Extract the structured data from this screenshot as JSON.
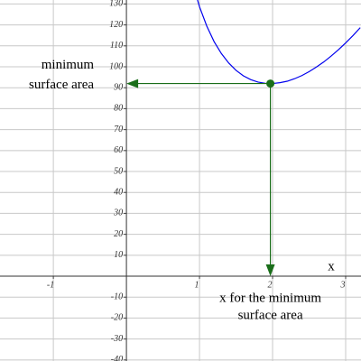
{
  "chart_data": {
    "type": "line",
    "xlabel": "x",
    "annotations": [
      {
        "lines": [
          "minimum",
          "surface area"
        ]
      },
      {
        "lines": [
          "x for the minimum",
          "surface area"
        ]
      }
    ],
    "series": [
      {
        "color": "#0000ee",
        "x": [
          0.9,
          1.0,
          1.1,
          1.2,
          1.3,
          1.4,
          1.5,
          1.6,
          1.7,
          1.8,
          1.9,
          2.0,
          2.1,
          2.2,
          2.3,
          2.4,
          2.5,
          2.6,
          2.7,
          2.8,
          2.9,
          3.0,
          3.1,
          3.2
        ],
        "values": [
          140.6,
          128.7,
          119.4,
          112.0,
          106.3,
          101.8,
          98.3,
          95.7,
          93.9,
          92.7,
          92.1,
          92.0,
          92.4,
          93.1,
          94.3,
          95.8,
          97.7,
          99.9,
          102.3,
          105.1,
          108.1,
          111.4,
          114.9,
          118.7
        ]
      }
    ],
    "point": {
      "x": 1.97,
      "y": 92,
      "color": "#1a6e1a"
    },
    "xlim": [
      -1.73,
      3.21
    ],
    "ylim": [
      -40.5,
      131.9
    ],
    "xticks": [
      -1,
      1,
      2,
      3
    ],
    "yticks": [
      -40,
      -30,
      -20,
      -10,
      10,
      20,
      30,
      40,
      50,
      60,
      70,
      80,
      90,
      100,
      110,
      120,
      130
    ],
    "grid": true
  }
}
